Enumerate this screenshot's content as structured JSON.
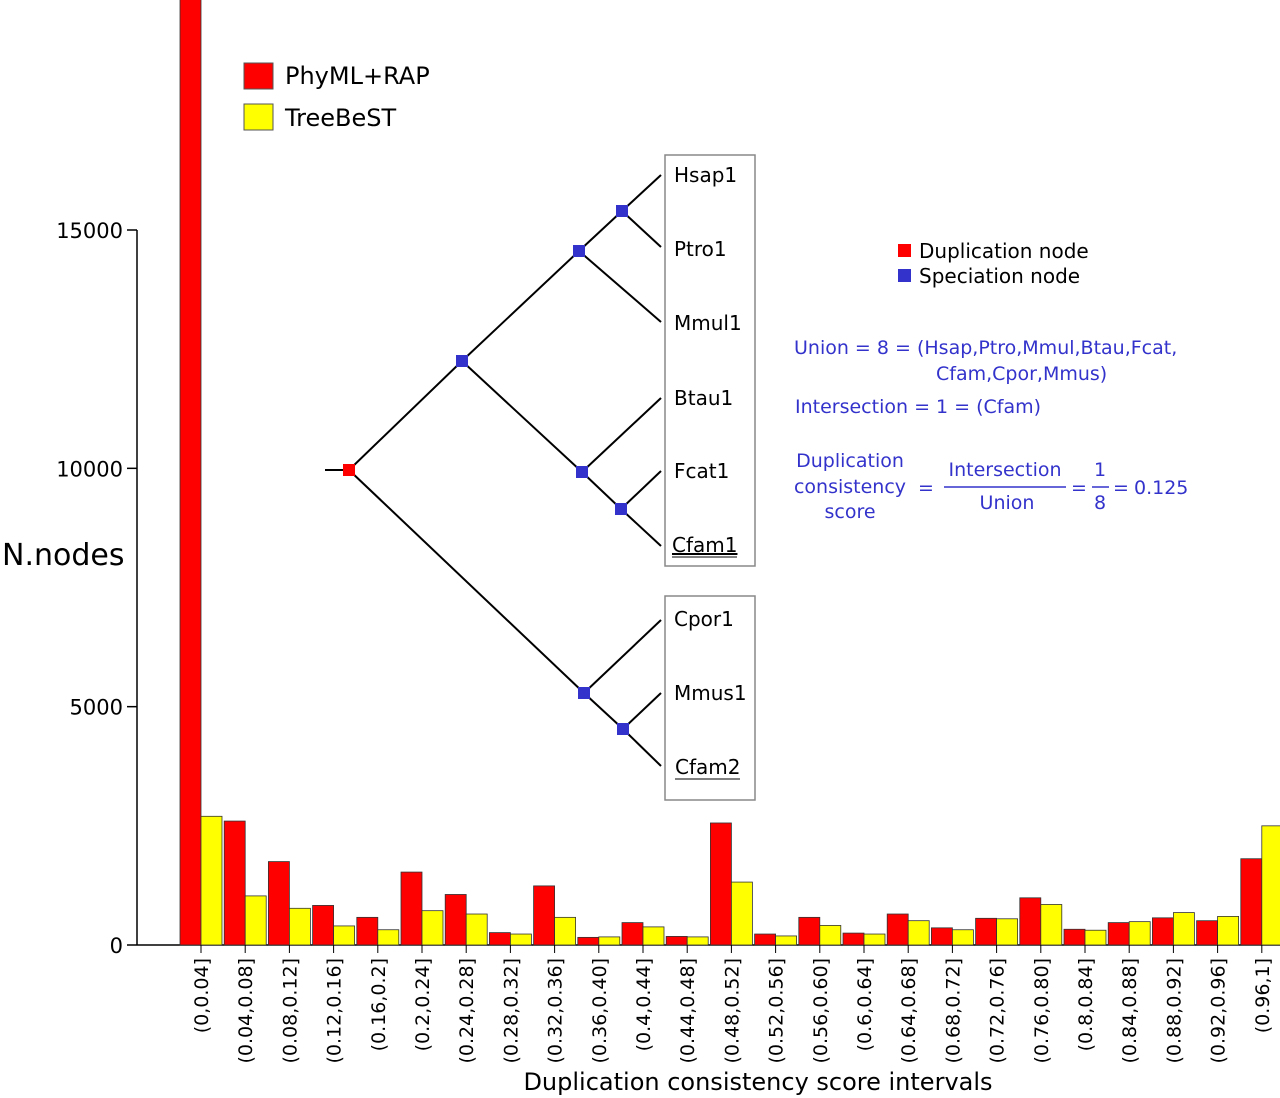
{
  "chart_data": {
    "type": "bar",
    "title": "",
    "xlabel": "Duplication consistency score intervals",
    "ylabel": "N.nodes",
    "ylim": [
      0,
      20000
    ],
    "yticks": [
      0,
      5000,
      10000,
      15000
    ],
    "ytick_labels": [
      "0",
      "5000",
      "10000",
      "15000"
    ],
    "legend_placement": "top-left",
    "grid": false,
    "categories": [
      "(0,0.04]",
      "(0.04,0.08]",
      "(0.08,0.12]",
      "(0.12,0.16]",
      "(0.16,0.2]",
      "(0.2,0.24]",
      "(0.24,0.28]",
      "(0.28,0.32]",
      "(0.32,0.36]",
      "(0.36,0.40]",
      "(0.4,0.44]",
      "(0.44,0.48]",
      "(0.48,0.52]",
      "(0.52,0.56]",
      "(0.56,0.60]",
      "(0.6,0.64]",
      "(0.64,0.68]",
      "(0.68,0.72]",
      "(0.72,0.76]",
      "(0.76,0.80]",
      "(0.8,0.84]",
      "(0.84,0.88]",
      "(0.88,0.92]",
      "(0.92,0.96]",
      "(0.96,1]"
    ],
    "series": [
      {
        "name": "PhyML+RAP",
        "color": "#ff0000",
        "values": [
          19850,
          2600,
          1750,
          830,
          580,
          1530,
          1060,
          260,
          1240,
          160,
          470,
          180,
          2560,
          230,
          580,
          250,
          650,
          360,
          560,
          990,
          330,
          470,
          570,
          510,
          1810
        ]
      },
      {
        "name": "TreeBeST",
        "color": "#ffff00",
        "values": [
          2700,
          1030,
          770,
          400,
          320,
          720,
          650,
          230,
          580,
          170,
          380,
          170,
          1320,
          190,
          410,
          230,
          510,
          320,
          550,
          850,
          310,
          490,
          680,
          600,
          2500
        ]
      }
    ]
  },
  "inset": {
    "leaves_group1": [
      "Hsap1",
      "Ptro1",
      "Mmul1",
      "Btau1",
      "Fcat1",
      "Cfam1"
    ],
    "leaves_group2": [
      "Cpor1",
      "Mmus1",
      "Cfam2"
    ],
    "node_legend": [
      {
        "label": "Duplication node",
        "color": "#ff0000"
      },
      {
        "label": "Speciation node",
        "color": "#3333cc"
      }
    ],
    "union_line1": "Union = 8 = (Hsap,Ptro,Mmul,Btau,Fcat,",
    "union_line2": "Cfam,Cpor,Mmus)",
    "intersection": "Intersection = 1 = (Cfam)",
    "score_label_1": "Duplication",
    "score_label_2": "consistency",
    "score_label_3": "score",
    "eq1": "=",
    "frac1_num": "Intersection",
    "frac1_den": "Union",
    "eq2": "=",
    "frac2_num": "1",
    "frac2_den": "8",
    "eq3": "=",
    "score_value": "0.125",
    "text_color": "#3333cc"
  }
}
